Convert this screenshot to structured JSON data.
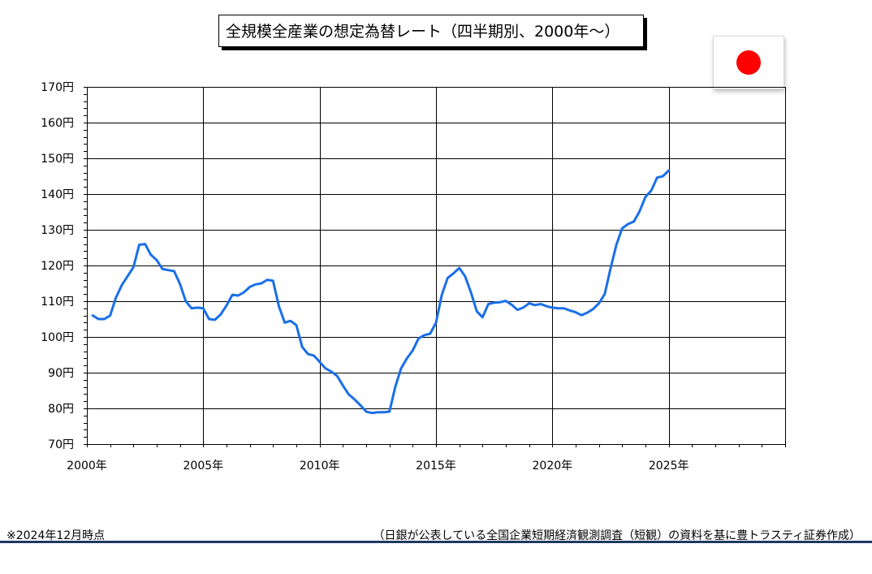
{
  "title": "全規模全産業の想定為替レート（四半期別、2000年～）",
  "flag_icon": "japan-flag-icon",
  "colors": {
    "line": "#1a6fe8",
    "grid": "#000000",
    "flag_red": "#ff0000",
    "footer_rule": "#1f3864"
  },
  "chart_data": {
    "type": "line",
    "xlim": [
      2000,
      2030
    ],
    "ylim": [
      70,
      170
    ],
    "yticks": [
      70,
      80,
      90,
      100,
      110,
      120,
      130,
      140,
      150,
      160,
      170
    ],
    "ytick_labels": [
      "70円",
      "80円",
      "90円",
      "100円",
      "110円",
      "120円",
      "130円",
      "140円",
      "150円",
      "160円",
      "170円"
    ],
    "xticks": [
      2000,
      2005,
      2010,
      2015,
      2020,
      2025
    ],
    "xtick_labels": [
      "2000年",
      "2005年",
      "2010年",
      "2015年",
      "2020年",
      "2025年"
    ],
    "grid": true,
    "series": [
      {
        "x": [
          2000.25,
          2000.5,
          2000.75,
          2001.0,
          2001.25,
          2001.5,
          2001.75,
          2002.0,
          2002.25,
          2002.5,
          2002.75,
          2003.0,
          2003.25,
          2003.5,
          2003.75,
          2004.0,
          2004.25,
          2004.5,
          2004.75,
          2005.0,
          2005.25,
          2005.5,
          2005.75,
          2006.0,
          2006.25,
          2006.5,
          2006.75,
          2007.0,
          2007.25,
          2007.5,
          2007.75,
          2008.0,
          2008.25,
          2008.5,
          2008.75,
          2009.0,
          2009.25,
          2009.5,
          2009.75,
          2010.0,
          2010.25,
          2010.5,
          2010.75,
          2011.0,
          2011.25,
          2011.5,
          2011.75,
          2012.0,
          2012.25,
          2012.5,
          2012.75,
          2013.0,
          2013.25,
          2013.5,
          2013.75,
          2014.0,
          2014.25,
          2014.5,
          2014.75,
          2015.0,
          2015.25,
          2015.5,
          2015.75,
          2016.0,
          2016.25,
          2016.5,
          2016.75,
          2017.0,
          2017.25,
          2017.5,
          2017.75,
          2018.0,
          2018.25,
          2018.5,
          2018.75,
          2019.0,
          2019.25,
          2019.5,
          2019.75,
          2020.0,
          2020.25,
          2020.5,
          2020.75,
          2021.0,
          2021.25,
          2021.5,
          2021.75,
          2022.0,
          2022.25,
          2022.5,
          2022.75,
          2023.0,
          2023.25,
          2023.5,
          2023.75,
          2024.0,
          2024.25,
          2024.5,
          2024.75,
          2025.0
        ],
        "values": [
          106.0,
          105.0,
          105.0,
          106.0,
          111.0,
          114.5,
          117.0,
          119.5,
          125.8,
          126.0,
          123.0,
          121.5,
          119.0,
          118.7,
          118.4,
          114.8,
          110.0,
          108.0,
          108.2,
          108.0,
          105.0,
          104.8,
          106.3,
          108.8,
          111.8,
          111.6,
          112.5,
          114.0,
          114.7,
          115.0,
          116.0,
          115.7,
          108.6,
          104.0,
          104.5,
          103.3,
          97.2,
          95.2,
          94.8,
          93.0,
          91.2,
          90.3,
          89.1,
          86.4,
          83.9,
          82.5,
          80.9,
          79.1,
          78.7,
          78.9,
          78.9,
          79.1,
          86.0,
          91.2,
          94.0,
          96.2,
          99.6,
          100.5,
          100.9,
          104.0,
          111.8,
          116.5,
          117.8,
          119.3,
          117.0,
          112.5,
          107.2,
          105.5,
          109.2,
          109.6,
          109.7,
          110.1,
          109.0,
          107.6,
          108.2,
          109.4,
          108.9,
          109.2,
          108.6,
          108.2,
          108.0,
          108.0,
          107.4,
          106.9,
          106.1,
          106.8,
          107.8,
          109.4,
          112.0,
          119.2,
          125.8,
          130.4,
          131.6,
          132.3,
          135.2,
          139.2,
          141.0,
          144.6,
          145.0,
          146.6
        ]
      }
    ]
  },
  "footnote_left": "※2024年12月時点",
  "footnote_right": "（日銀が公表している全国企業短期経済観測調査（短観）の資料を基に豊トラスティ証券作成）"
}
